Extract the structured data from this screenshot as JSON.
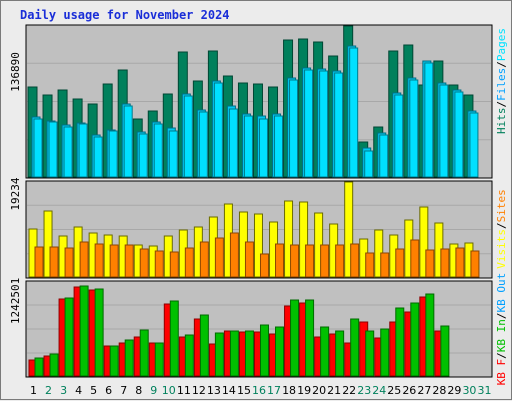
{
  "title": "Daily usage for November 2024",
  "colors": {
    "hits": "#00805c",
    "files": "#00c8f0",
    "pages": "#00e0ff",
    "visits": "#ffff00",
    "sites": "#ff8000",
    "kbf": "#ff0000",
    "kbin": "#00c000",
    "kbout": "#00a0ff",
    "weekday_label": "#000000",
    "weekend_label": "#00805c"
  },
  "legends": {
    "panel1": [
      {
        "text": "Hits",
        "color": "#00805c"
      },
      {
        "text": "/",
        "color": "#000000"
      },
      {
        "text": "Files",
        "color": "#00a0ff"
      },
      {
        "text": "/",
        "color": "#000000"
      },
      {
        "text": "Pages",
        "color": "#00e0ff"
      }
    ],
    "panel2": [
      {
        "text": "Visits",
        "color": "#ffff00"
      },
      {
        "text": "/",
        "color": "#000000"
      },
      {
        "text": "Sites",
        "color": "#ff8000"
      }
    ],
    "panel3": [
      {
        "text": "KB F",
        "color": "#ff0000"
      },
      {
        "text": "/",
        "color": "#000000"
      },
      {
        "text": "KB In",
        "color": "#00c000"
      },
      {
        "text": "/",
        "color": "#000000"
      },
      {
        "text": "KB Out",
        "color": "#00a0ff"
      }
    ]
  },
  "chart_data": [
    {
      "type": "bar",
      "ylim": [
        0,
        136890
      ],
      "y_tick_label": "136890",
      "categories": [
        "1",
        "2",
        "3",
        "4",
        "5",
        "6",
        "7",
        "8",
        "9",
        "10",
        "11",
        "12",
        "13",
        "14",
        "15",
        "16",
        "17",
        "18",
        "19",
        "20",
        "21",
        "22",
        "23",
        "24",
        "25",
        "26",
        "27",
        "28",
        "29",
        "30",
        "31"
      ],
      "weekend": [
        2,
        3,
        9,
        10,
        16,
        17,
        23,
        24,
        30,
        31
      ],
      "series": [
        {
          "name": "Hits",
          "values": [
            82000,
            74000,
            79000,
            71000,
            66000,
            84000,
            97000,
            53000,
            60000,
            75000,
            113000,
            87000,
            114000,
            92000,
            85000,
            84000,
            82000,
            124000,
            125000,
            122000,
            110000,
            136890,
            32000,
            45000,
            114000,
            120000,
            83000,
            105000,
            83000,
            74000,
            0
          ]
        },
        {
          "name": "Files",
          "values": [
            54000,
            51000,
            47000,
            49000,
            38000,
            43000,
            66000,
            41000,
            50000,
            44000,
            75000,
            61000,
            87000,
            64000,
            57000,
            55000,
            57000,
            90000,
            99000,
            98000,
            96000,
            119000,
            26000,
            40000,
            76000,
            90000,
            105000,
            85000,
            79000,
            60000,
            0
          ]
        },
        {
          "name": "Pages",
          "values": [
            53000,
            50000,
            45000,
            48000,
            36000,
            42000,
            64000,
            39000,
            48000,
            42000,
            73000,
            59000,
            85000,
            62000,
            55000,
            53000,
            55000,
            88000,
            97000,
            96000,
            94000,
            117000,
            24000,
            38000,
            74000,
            88000,
            103000,
            83000,
            77000,
            58000,
            0
          ]
        }
      ]
    },
    {
      "type": "bar",
      "ylim": [
        0,
        19234
      ],
      "y_tick_label": "19234",
      "categories": [
        "1",
        "2",
        "3",
        "4",
        "5",
        "6",
        "7",
        "8",
        "9",
        "10",
        "11",
        "12",
        "13",
        "14",
        "15",
        "16",
        "17",
        "18",
        "19",
        "20",
        "21",
        "22",
        "23",
        "24",
        "25",
        "26",
        "27",
        "28",
        "29",
        "30",
        "31"
      ],
      "weekend": [
        2,
        3,
        9,
        10,
        16,
        17,
        23,
        24,
        30,
        31
      ],
      "series": [
        {
          "name": "Visits",
          "values": [
            9700,
            13300,
            8400,
            10200,
            9000,
            8600,
            8300,
            6400,
            6200,
            8200,
            9500,
            10100,
            12200,
            14700,
            13100,
            12800,
            11200,
            15400,
            15100,
            13000,
            10700,
            19234,
            7600,
            9500,
            8500,
            11500,
            14200,
            11000,
            6600,
            6800,
            0
          ]
        },
        {
          "name": "Sites",
          "values": [
            6100,
            6000,
            5900,
            7000,
            6700,
            6500,
            6400,
            5700,
            5300,
            5100,
            5800,
            7000,
            7800,
            8900,
            7100,
            4700,
            6600,
            6400,
            6500,
            6400,
            6500,
            6600,
            4800,
            4900,
            5600,
            7500,
            5400,
            5700,
            5800,
            5300,
            0
          ]
        }
      ]
    },
    {
      "type": "bar",
      "ylim": [
        0,
        1242501
      ],
      "y_tick_label": "1242501",
      "categories": [
        "1",
        "2",
        "3",
        "4",
        "5",
        "6",
        "7",
        "8",
        "9",
        "10",
        "11",
        "12",
        "13",
        "14",
        "15",
        "16",
        "17",
        "18",
        "19",
        "20",
        "21",
        "22",
        "23",
        "24",
        "25",
        "26",
        "27",
        "28",
        "29",
        "30",
        "31"
      ],
      "weekend": [
        2,
        3,
        9,
        10,
        16,
        17,
        23,
        24,
        30,
        31
      ],
      "series": [
        {
          "name": "KB F",
          "values": [
            210000,
            270000,
            1020000,
            1170000,
            1140000,
            390000,
            440000,
            520000,
            430000,
            950000,
            510000,
            760000,
            420000,
            590000,
            580000,
            580000,
            560000,
            920000,
            970000,
            520000,
            550000,
            430000,
            710000,
            500000,
            720000,
            850000,
            1050000,
            600000,
            0,
            0,
            0
          ]
        },
        {
          "name": "KB In",
          "values": [
            240000,
            290000,
            1030000,
            1190000,
            1150000,
            400000,
            470000,
            610000,
            440000,
            990000,
            540000,
            800000,
            570000,
            590000,
            600000,
            670000,
            650000,
            1010000,
            1010000,
            650000,
            590000,
            760000,
            600000,
            620000,
            900000,
            960000,
            1080000,
            660000,
            0,
            0,
            0
          ]
        },
        {
          "name": "KB Out",
          "values": [
            0,
            0,
            0,
            0,
            0,
            0,
            0,
            0,
            0,
            0,
            0,
            0,
            0,
            0,
            0,
            0,
            0,
            0,
            0,
            0,
            0,
            0,
            0,
            0,
            0,
            0,
            0,
            0,
            0,
            0,
            0
          ]
        }
      ]
    }
  ]
}
